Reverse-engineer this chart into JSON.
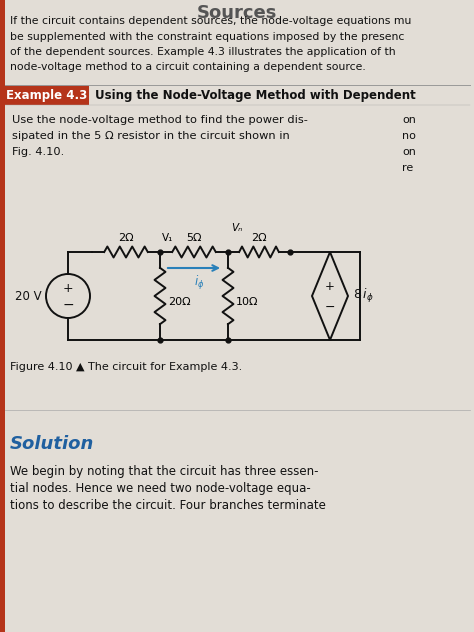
{
  "bg_color": "#ccc9c0",
  "page_bg": "#e2ddd6",
  "example_label_bg": "#b5341a",
  "example_label_color": "#ffffff",
  "solution_color": "#2060a0",
  "left_bar_color": "#b5341a",
  "circuit_line_color": "#111111",
  "arrow_color": "#2980b9",
  "header_lines": [
    "If the circuit contains dependent sources, the node-voltage equations mu",
    "be supplemented with the constraint equations imposed by the presenc",
    "of the dependent sources. Example 4.3 illustrates the application of th",
    "node-voltage method to a circuit containing a dependent source."
  ],
  "example_label": "Example 4.3",
  "example_title": "Using the Node-Voltage Method with Dependent",
  "prob_lines": [
    "Use the node-voltage method to find the power dis-",
    "sipated in the 5 Ω resistor in the circuit shown in",
    "Fig. 4.10."
  ],
  "right_lines": [
    "on",
    "no",
    "on",
    "re"
  ],
  "figure_caption": "Figure 4.10 ▲ The circuit for Example 4.3.",
  "solution_title": "Solution",
  "sol_lines": [
    "We begin by noting that the circuit has three essen-",
    "tial nodes. Hence we need two node-voltage equa-",
    "tions to describe the circuit. Four branches terminate"
  ],
  "title_text": "Sources"
}
